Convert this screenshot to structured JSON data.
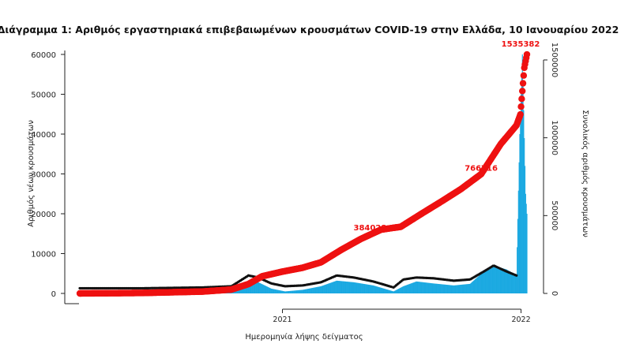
{
  "chart_data": {
    "type": "bar",
    "title": "Διάγραμμα 1: Αριθμός εργαστηριακά επιβεβαιωμένων κρουσμάτων COVID-19 στην Ελλάδα, 10 Ιανουαρίου 2022",
    "xlabel": "Ημερομηνία λήψης δείγματος",
    "ylabel_left": "Αριθμός νέων κρουσμάτων",
    "ylabel_right": "Συνολικός αριθμός κρουσμάτων",
    "x_ticks": [
      "2021",
      "2022"
    ],
    "x_tick_dates": [
      "2021-01-01",
      "2022-01-01"
    ],
    "xlim": [
      "2020-02-26",
      "2022-01-10"
    ],
    "ylim_left": [
      0,
      60000
    ],
    "y_ticks_left": [
      "0",
      "10000",
      "20000",
      "30000",
      "40000",
      "50000",
      "60000"
    ],
    "ylim_right": [
      0,
      1500000
    ],
    "y_ticks_right": [
      "0",
      "500000",
      "1000000",
      "1500000"
    ],
    "grid": false,
    "series": [
      {
        "kind": "bar",
        "axis": "left",
        "color": "#1ba9e1",
        "dates": [
          "2020-02-26",
          "2020-04-01",
          "2020-06-01",
          "2020-08-01",
          "2020-09-15",
          "2020-10-15",
          "2020-11-10",
          "2020-11-25",
          "2020-12-15",
          "2021-01-05",
          "2021-02-01",
          "2021-03-01",
          "2021-03-25",
          "2021-04-20",
          "2021-05-20",
          "2021-06-20",
          "2021-07-05",
          "2021-07-25",
          "2021-08-20",
          "2021-09-20",
          "2021-10-15",
          "2021-11-05",
          "2021-11-20",
          "2021-12-10",
          "2021-12-25",
          "2021-12-30",
          "2022-01-03",
          "2022-01-05",
          "2022-01-08",
          "2022-01-10"
        ],
        "values": [
          0,
          60,
          20,
          150,
          300,
          900,
          2500,
          2800,
          1200,
          500,
          900,
          1800,
          3200,
          2800,
          2000,
          500,
          1800,
          3000,
          2500,
          2000,
          2400,
          5500,
          7000,
          6000,
          4500,
          40000,
          60000,
          46000,
          25000,
          20000
        ]
      },
      {
        "kind": "points",
        "axis": "left",
        "color": "#111111",
        "dates": [
          "2020-02-26",
          "2020-06-01",
          "2020-09-01",
          "2020-10-15",
          "2020-11-10",
          "2020-11-25",
          "2020-12-15",
          "2021-01-05",
          "2021-02-01",
          "2021-03-01",
          "2021-03-25",
          "2021-04-20",
          "2021-05-20",
          "2021-06-20",
          "2021-07-05",
          "2021-07-25",
          "2021-08-20",
          "2021-09-20",
          "2021-10-15",
          "2021-11-05",
          "2021-11-20",
          "2021-12-10",
          "2021-12-25"
        ],
        "values": [
          1300,
          1300,
          1500,
          1800,
          4500,
          4000,
          2500,
          1800,
          2000,
          2800,
          4500,
          4000,
          3000,
          1500,
          3500,
          4000,
          3800,
          3200,
          3500,
          5500,
          7000,
          5500,
          4500
        ]
      },
      {
        "kind": "points",
        "axis": "right",
        "color": "#ee1111",
        "dates": [
          "2020-02-26",
          "2020-06-01",
          "2020-09-01",
          "2020-10-15",
          "2020-11-10",
          "2020-12-01",
          "2021-01-01",
          "2021-02-01",
          "2021-03-01",
          "2021-04-01",
          "2021-05-01",
          "2021-06-01",
          "2021-07-01",
          "2021-08-01",
          "2021-09-01",
          "2021-10-01",
          "2021-11-01",
          "2021-12-01",
          "2021-12-25",
          "2021-12-31",
          "2022-01-03",
          "2022-01-06",
          "2022-01-10"
        ],
        "values": [
          0,
          3000,
          12000,
          25000,
          60000,
          110000,
          140000,
          165000,
          200000,
          280000,
          350000,
          410000,
          428000,
          510000,
          590000,
          670000,
          766716,
          960000,
          1080000,
          1150000,
          1300000,
          1450000,
          1535382
        ]
      }
    ],
    "annotations": [
      {
        "text": "384028",
        "date": "2021-05-15",
        "value": 384028,
        "color": "#ee1111"
      },
      {
        "text": "766716",
        "date": "2021-11-01",
        "value": 766716,
        "color": "#ee1111"
      },
      {
        "text": "1535382",
        "date": "2022-01-10",
        "value": 1535382,
        "color": "#ee1111"
      }
    ]
  }
}
